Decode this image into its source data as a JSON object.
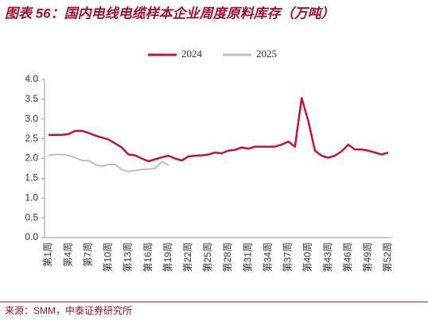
{
  "chart_data": {
    "type": "line",
    "title": "图表 56：国内电线电缆样本企业周度原料库存（万吨）",
    "source": "来源：SMM，中泰证券研究所",
    "categories": [
      "第1周",
      null,
      null,
      "第4周",
      null,
      null,
      "第7周",
      null,
      null,
      "第10周",
      null,
      null,
      "第13周",
      null,
      null,
      "第16周",
      null,
      null,
      "第19周",
      null,
      null,
      "第22周",
      null,
      null,
      "第25周",
      null,
      null,
      "第28周",
      null,
      null,
      "第31周",
      null,
      null,
      "第34周",
      null,
      null,
      "第37周",
      null,
      null,
      "第40周",
      null,
      null,
      "第43周",
      null,
      null,
      "第46周",
      null,
      null,
      "第49周",
      null,
      null,
      "第52周"
    ],
    "series": [
      {
        "name": "2024",
        "color": "#c0143c",
        "values": [
          2.6,
          2.6,
          2.6,
          2.62,
          2.7,
          2.7,
          2.65,
          2.58,
          2.53,
          2.48,
          2.38,
          2.28,
          2.1,
          2.08,
          2.0,
          1.93,
          1.98,
          2.03,
          2.07,
          2.0,
          1.95,
          2.05,
          2.07,
          2.08,
          2.1,
          2.15,
          2.13,
          2.2,
          2.22,
          2.28,
          2.25,
          2.3,
          2.3,
          2.3,
          2.3,
          2.35,
          2.43,
          2.3,
          3.53,
          2.95,
          2.2,
          2.07,
          2.02,
          2.07,
          2.18,
          2.35,
          2.23,
          2.23,
          2.2,
          2.15,
          2.1,
          2.15
        ]
      },
      {
        "name": "2025",
        "color": "#bfbfbf",
        "values": [
          2.08,
          2.1,
          2.1,
          2.08,
          2.02,
          1.95,
          1.95,
          1.85,
          1.8,
          1.85,
          1.85,
          1.72,
          1.67,
          1.7,
          1.72,
          1.73,
          1.75,
          1.92,
          1.83,
          null,
          null,
          null,
          null,
          null,
          null,
          null,
          null,
          null,
          null,
          null,
          null,
          null,
          null,
          null,
          null,
          null,
          null,
          null,
          null,
          null,
          null,
          null,
          null,
          null,
          null,
          null,
          null,
          null,
          null,
          null,
          null,
          null
        ]
      }
    ],
    "ylim": [
      0,
      4
    ],
    "yticks": [
      {
        "value": 0,
        "label": "0.0"
      },
      0.5,
      {
        "value": 1,
        "label": "1.0"
      },
      1.5,
      {
        "value": 2,
        "label": "2.0"
      },
      2.5,
      {
        "value": 3,
        "label": "3.0"
      },
      3.5,
      {
        "value": 4,
        "label": "4.0"
      }
    ]
  }
}
